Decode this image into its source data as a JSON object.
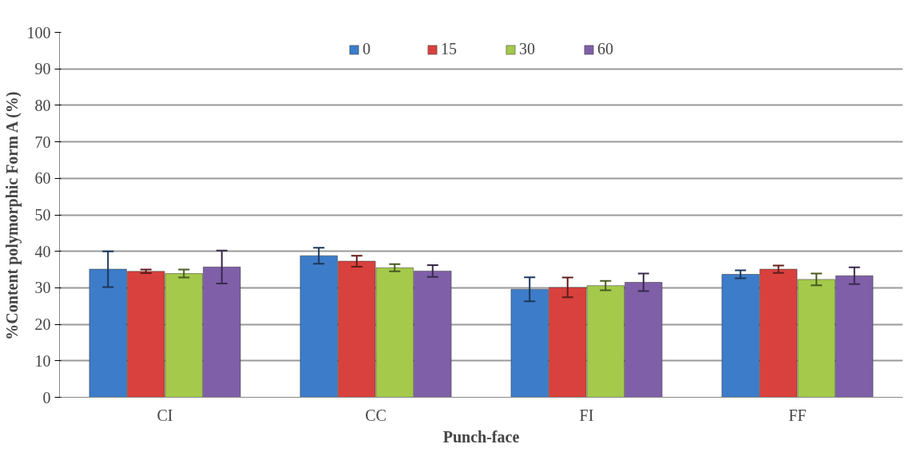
{
  "chart_data": {
    "type": "bar",
    "xlabel": "Punch-face",
    "ylabel": "%Content polymorphic Form A (%)",
    "categories": [
      "CI",
      "CC",
      "FI",
      "FF"
    ],
    "series": [
      {
        "name": "0",
        "color": "#3d7cc9",
        "values": [
          35.1,
          38.8,
          29.6,
          33.7
        ],
        "errors": [
          4.9,
          2.2,
          3.3,
          1.1
        ]
      },
      {
        "name": "15",
        "color": "#d8413d",
        "values": [
          34.5,
          37.3,
          30.1,
          35.1
        ],
        "errors": [
          0.5,
          1.5,
          2.7,
          1.0
        ]
      },
      {
        "name": "30",
        "color": "#a4c94b",
        "values": [
          33.9,
          35.5,
          30.6,
          32.3
        ],
        "errors": [
          1.1,
          1.0,
          1.3,
          1.6
        ]
      },
      {
        "name": "60",
        "color": "#7f5fa8",
        "values": [
          35.7,
          34.6,
          31.5,
          33.3
        ],
        "errors": [
          4.5,
          1.6,
          2.4,
          2.3
        ]
      }
    ],
    "ylim": [
      0,
      100
    ],
    "yticks": [
      0,
      10,
      20,
      30,
      40,
      50,
      60,
      70,
      80,
      90,
      100
    ],
    "grid": "y",
    "legend": "top"
  }
}
